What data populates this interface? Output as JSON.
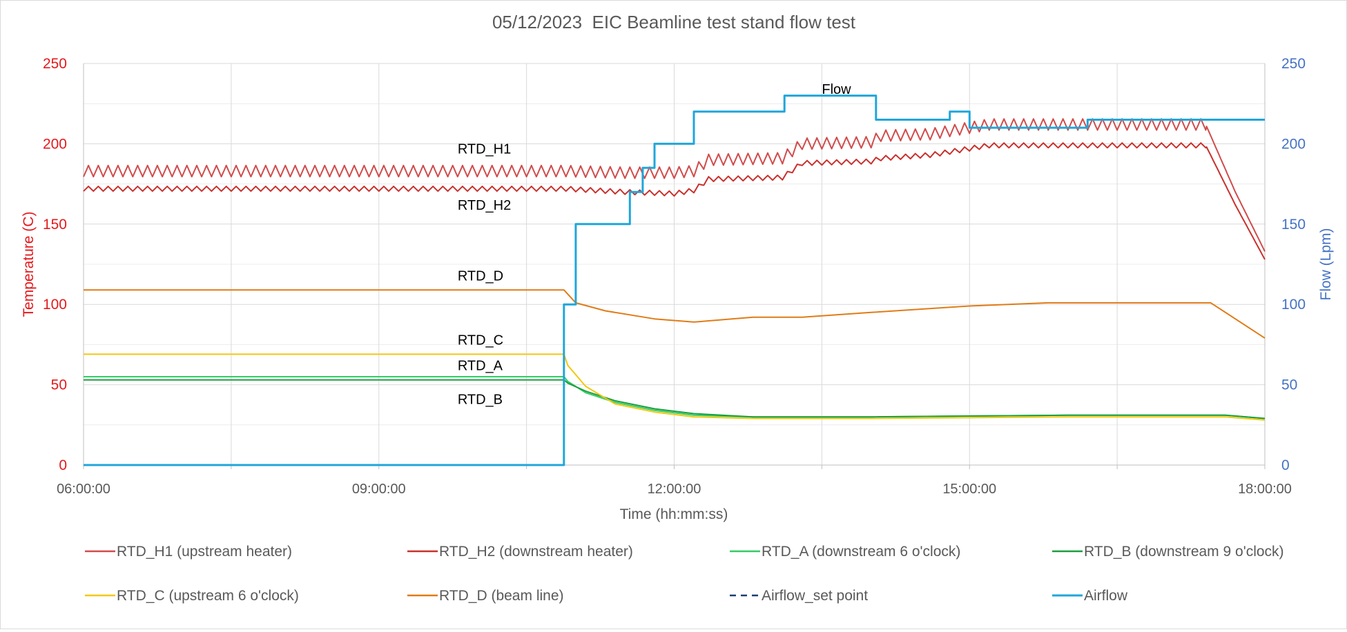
{
  "chart_data": {
    "type": "line",
    "title": "05/12/2023  EIC Beamline test stand flow test",
    "xlabel": "Time (hh:mm:ss)",
    "ylabel_left": "Temperature (C)",
    "ylabel_right": "Flow (Lpm)",
    "xlim_hours": [
      6,
      18
    ],
    "x_ticks": [
      "06:00:00",
      "09:00:00",
      "12:00:00",
      "15:00:00",
      "18:00:00"
    ],
    "ylim_left": [
      0,
      250
    ],
    "ylim_right": [
      0,
      250
    ],
    "y_ticks_left": [
      "0",
      "50",
      "100",
      "150",
      "200",
      "250"
    ],
    "y_ticks_right": [
      "0",
      "50",
      "100",
      "150",
      "200",
      "250"
    ],
    "grid": true,
    "legend_position": "bottom",
    "colors": {
      "left_axis": "#e31a1c",
      "right_axis": "#4472c4",
      "grid": "#d9d9d9"
    },
    "annotations": [
      {
        "text": "Flow",
        "x_hour": 13.5,
        "y": 231
      },
      {
        "text": "RTD_H1",
        "x_hour": 9.8,
        "y": 194
      },
      {
        "text": "RTD_H2",
        "x_hour": 9.8,
        "y": 159
      },
      {
        "text": "RTD_D",
        "x_hour": 9.8,
        "y": 115
      },
      {
        "text": "RTD_C",
        "x_hour": 9.8,
        "y": 75
      },
      {
        "text": "RTD_A",
        "x_hour": 9.8,
        "y": 59
      },
      {
        "text": "RTD_B",
        "x_hour": 9.8,
        "y": 38
      }
    ],
    "series": [
      {
        "name": "RTD_H1 (upstream heater)",
        "color": "#d14b4b",
        "dash": "solid",
        "axis": "left",
        "ripple": 3.5,
        "ripple_period_min": 6,
        "ripple_until_hour": 17.4,
        "x": [
          6.0,
          10.9,
          11.5,
          12.0,
          12.2,
          12.35,
          13.1,
          13.3,
          14.0,
          14.1,
          14.6,
          14.8,
          15.0,
          15.2,
          17.4,
          17.7,
          18.0
        ],
        "y": [
          183,
          183,
          182,
          182,
          183,
          190,
          191,
          200,
          201,
          205,
          206,
          208,
          210,
          212,
          212,
          170,
          133
        ]
      },
      {
        "name": "RTD_H2 (downstream heater)",
        "color": "#c9302c",
        "dash": "solid",
        "axis": "left",
        "ripple": 1.5,
        "ripple_period_min": 6,
        "ripple_until_hour": 17.4,
        "x": [
          6.0,
          10.9,
          11.5,
          12.0,
          12.2,
          12.35,
          13.1,
          13.3,
          14.0,
          14.1,
          14.6,
          14.8,
          15.0,
          15.2,
          17.4,
          17.7,
          18.0
        ],
        "y": [
          172,
          172,
          170,
          169,
          171,
          178,
          179,
          188,
          189,
          191,
          193,
          195,
          197,
          199,
          199,
          162,
          128
        ]
      },
      {
        "name": "RTD_A (downstream 6 o'clock)",
        "color": "#33cc66",
        "dash": "solid",
        "axis": "left",
        "ripple": 0,
        "ripple_period_min": 6,
        "ripple_until_hour": 0,
        "x": [
          6.0,
          10.88,
          10.92,
          11.1,
          11.4,
          11.8,
          12.2,
          12.8,
          14.0,
          16.0,
          17.6,
          18.0
        ],
        "y": [
          55,
          55,
          52,
          45,
          39,
          34,
          31,
          30,
          30,
          31,
          31,
          29
        ]
      },
      {
        "name": "RTD_B (downstream 9 o'clock)",
        "color": "#1b9e3e",
        "dash": "solid",
        "axis": "left",
        "ripple": 0,
        "ripple_period_min": 6,
        "ripple_until_hour": 0,
        "x": [
          6.0,
          10.88,
          10.92,
          11.1,
          11.4,
          11.8,
          12.2,
          12.8,
          14.0,
          16.0,
          17.6,
          18.0
        ],
        "y": [
          53,
          53,
          51,
          46,
          40,
          35,
          32,
          30,
          30,
          31,
          31,
          29
        ]
      },
      {
        "name": "RTD_C (upstream 6 o'clock)",
        "color": "#f2c80f",
        "dash": "solid",
        "axis": "left",
        "ripple": 0,
        "ripple_period_min": 6,
        "ripple_until_hour": 0,
        "x": [
          6.0,
          10.88,
          10.92,
          11.1,
          11.4,
          11.8,
          12.2,
          12.8,
          14.0,
          16.0,
          17.6,
          18.0
        ],
        "y": [
          69,
          69,
          62,
          49,
          38,
          33,
          30,
          29,
          29,
          30,
          30,
          28
        ]
      },
      {
        "name": "RTD_D (beam line)",
        "color": "#e07b16",
        "dash": "solid",
        "axis": "left",
        "ripple": 0,
        "ripple_period_min": 6,
        "ripple_until_hour": 0,
        "x": [
          6.0,
          10.88,
          11.0,
          11.3,
          11.8,
          12.2,
          12.8,
          13.3,
          14.0,
          15.0,
          15.8,
          17.45,
          18.0
        ],
        "y": [
          109,
          109,
          101,
          96,
          91,
          89,
          92,
          92,
          95,
          99,
          101,
          101,
          79
        ]
      },
      {
        "name": "Airflow_set point",
        "color": "#1f3b73",
        "dash": "dashed",
        "axis": "right",
        "ripple": 0,
        "ripple_period_min": 6,
        "ripple_until_hour": 0,
        "x": [
          6.0,
          10.87
        ],
        "y": [
          0,
          0
        ]
      },
      {
        "name": "Airflow",
        "color": "#1fa6db",
        "dash": "solid",
        "axis": "right",
        "ripple": 0,
        "ripple_period_min": 6,
        "ripple_until_hour": 0,
        "x": [
          6.0,
          10.87,
          10.88,
          10.88,
          11.0,
          11.0,
          11.55,
          11.55,
          11.68,
          11.68,
          11.8,
          11.8,
          12.2,
          12.2,
          13.12,
          13.12,
          14.05,
          14.05,
          14.8,
          14.8,
          15.0,
          15.0,
          16.2,
          16.2,
          18.0
        ],
        "y": [
          0,
          0,
          0,
          100,
          100,
          150,
          150,
          170,
          170,
          185,
          185,
          200,
          200,
          220,
          220,
          230,
          230,
          215,
          215,
          220,
          220,
          210,
          210,
          215,
          215
        ]
      }
    ]
  }
}
